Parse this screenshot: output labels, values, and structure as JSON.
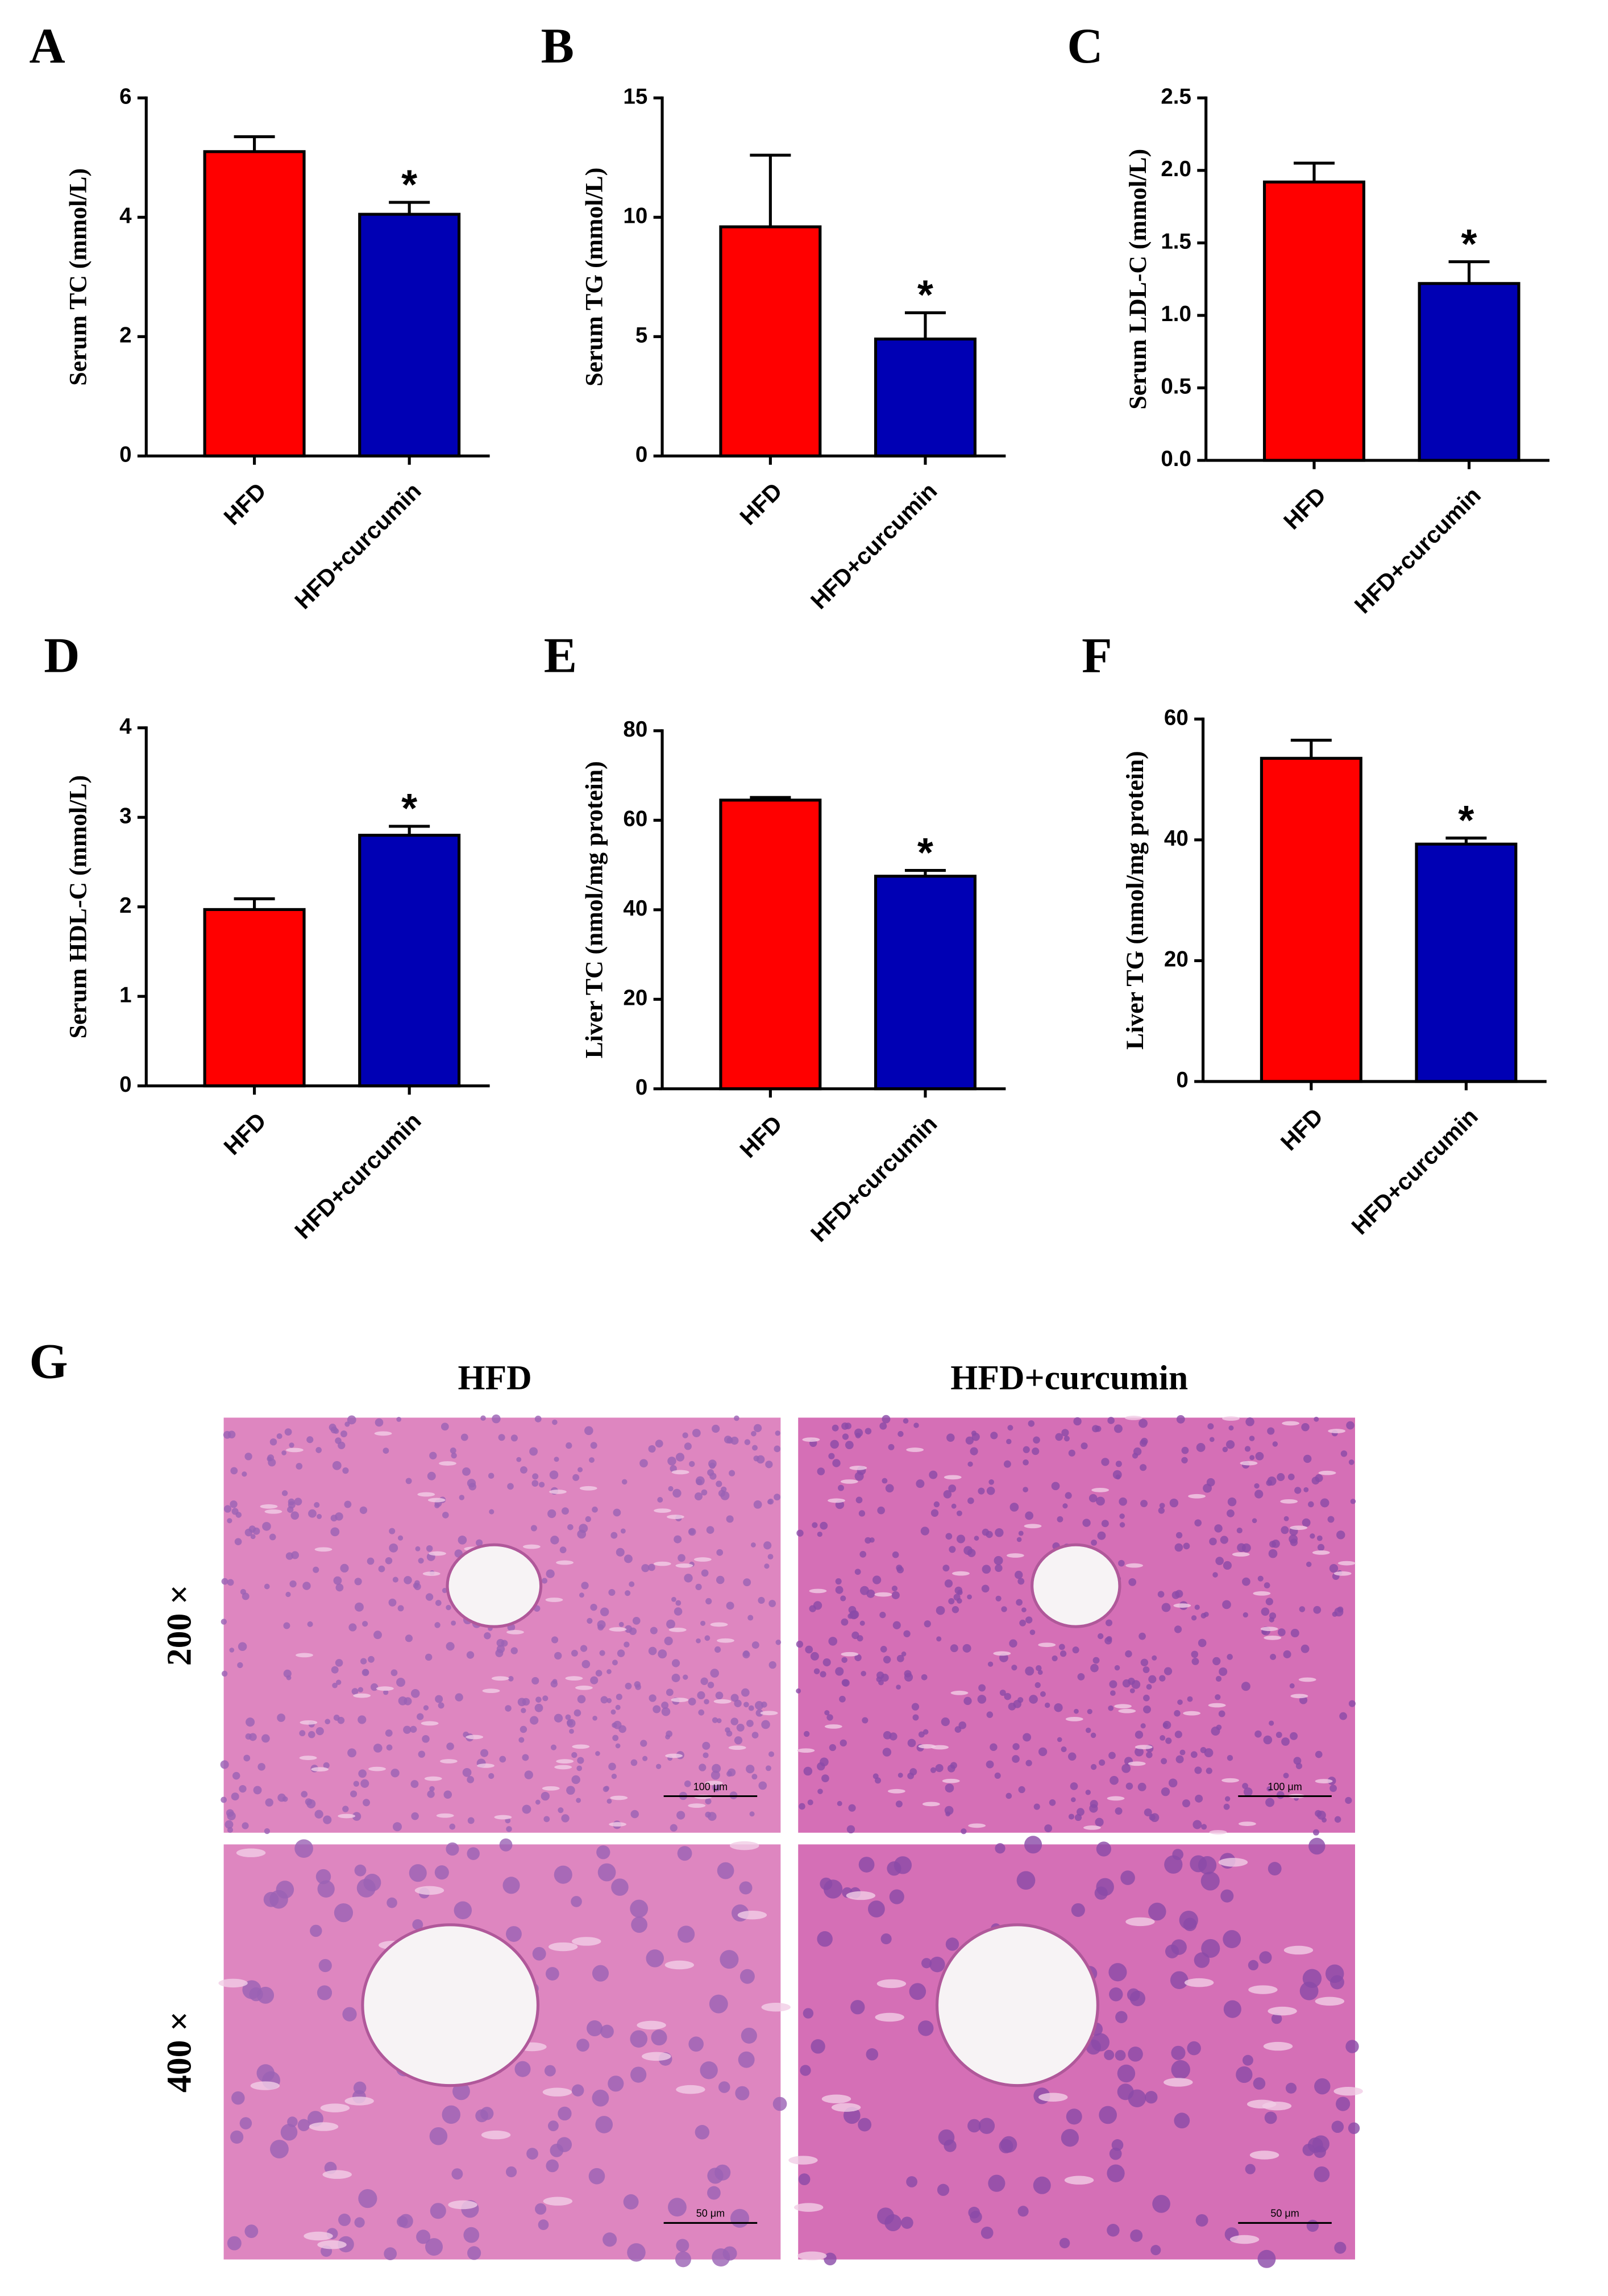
{
  "chart_data": [
    {
      "type": "bar",
      "panel": "A",
      "ylabel": "Serum TC (mmol/L)",
      "categories": [
        "HFD",
        "HFD+curcumin"
      ],
      "values": [
        5.1,
        4.05
      ],
      "errors": [
        0.25,
        0.2
      ],
      "colors": [
        "#ff0000",
        "#0000b4"
      ],
      "ylim": [
        0,
        6
      ],
      "yticks": [
        0,
        2,
        4,
        6
      ],
      "annotations": [
        {
          "text": "*",
          "category": "HFD+curcumin"
        }
      ]
    },
    {
      "type": "bar",
      "panel": "B",
      "ylabel": "Serum TG (mmol/L)",
      "categories": [
        "HFD",
        "HFD+curcumin"
      ],
      "values": [
        9.6,
        4.9
      ],
      "errors": [
        3.0,
        1.1
      ],
      "colors": [
        "#ff0000",
        "#0000b4"
      ],
      "ylim": [
        0,
        15
      ],
      "yticks": [
        0,
        5,
        10,
        15
      ],
      "annotations": [
        {
          "text": "*",
          "category": "HFD+curcumin"
        }
      ]
    },
    {
      "type": "bar",
      "panel": "C",
      "ylabel": "Serum LDL-C (mmol/L)",
      "categories": [
        "HFD",
        "HFD+curcumin"
      ],
      "values": [
        1.92,
        1.22
      ],
      "errors": [
        0.13,
        0.15
      ],
      "colors": [
        "#ff0000",
        "#0000b4"
      ],
      "ylim": [
        0,
        2.5
      ],
      "yticks": [
        {
          "value": 0,
          "label": "0.0"
        },
        0.5,
        {
          "value": 1,
          "label": "1.0"
        },
        1.5,
        {
          "value": 2,
          "label": "2.0"
        },
        2.5
      ],
      "annotations": [
        {
          "text": "*",
          "category": "HFD+curcumin"
        }
      ]
    },
    {
      "type": "bar",
      "panel": "D",
      "ylabel": "Serum HDL-C (mmol/L)",
      "categories": [
        "HFD",
        "HFD+curcumin"
      ],
      "values": [
        1.97,
        2.8
      ],
      "errors": [
        0.12,
        0.1
      ],
      "colors": [
        "#ff0000",
        "#0000b4"
      ],
      "ylim": [
        0,
        4
      ],
      "yticks": [
        0,
        1,
        2,
        3,
        4
      ],
      "annotations": [
        {
          "text": "*",
          "category": "HFD+curcumin"
        }
      ]
    },
    {
      "type": "bar",
      "panel": "E",
      "ylabel": "Liver TC (nmol/mg protein)",
      "categories": [
        "HFD",
        "HFD+curcumin"
      ],
      "values": [
        64.5,
        47.5
      ],
      "errors": [
        0.6,
        1.3
      ],
      "colors": [
        "#ff0000",
        "#0000b4"
      ],
      "ylim": [
        0,
        80
      ],
      "yticks": [
        0,
        20,
        40,
        60,
        80
      ],
      "annotations": [
        {
          "text": "*",
          "category": "HFD+curcumin"
        }
      ]
    },
    {
      "type": "bar",
      "panel": "F",
      "ylabel": "Liver TG (nmol/mg protein)",
      "categories": [
        "HFD",
        "HFD+curcumin"
      ],
      "values": [
        53.5,
        39.3
      ],
      "errors": [
        3.0,
        1.0
      ],
      "colors": [
        "#ff0000",
        "#0000b4"
      ],
      "ylim": [
        0,
        60
      ],
      "yticks": [
        0,
        20,
        40,
        60
      ],
      "annotations": [
        {
          "text": "*",
          "category": "HFD+curcumin"
        }
      ]
    }
  ],
  "figure_g": {
    "panel": "G",
    "columns": [
      "HFD",
      "HFD+curcumin"
    ],
    "rows": [
      "200 ×",
      "400 ×"
    ],
    "scale_bars": [
      [
        "100 μm",
        "100 μm"
      ],
      [
        "50 μm",
        "50 μm"
      ]
    ]
  }
}
